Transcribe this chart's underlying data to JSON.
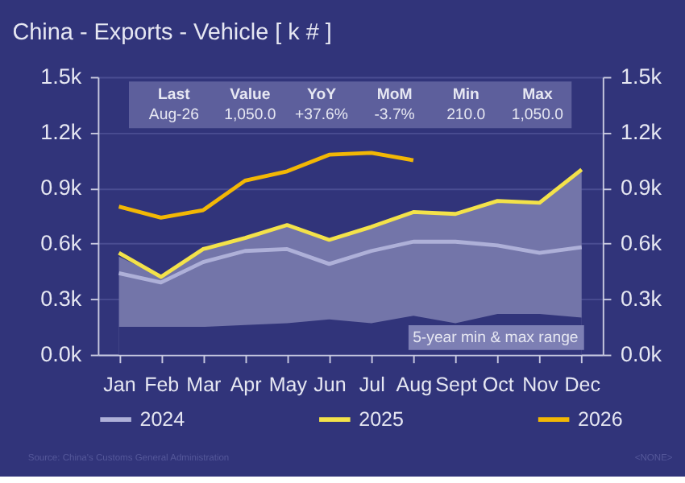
{
  "chart_data": {
    "type": "line",
    "title": "China - Exports - Vehicle [ k # ]",
    "categories": [
      "Jan",
      "Feb",
      "Mar",
      "Apr",
      "May",
      "Jun",
      "Jul",
      "Aug",
      "Sept",
      "Oct",
      "Nov",
      "Dec"
    ],
    "series": [
      {
        "name": "5-year min & max range",
        "type": "area",
        "color": "#7375a9",
        "values": [
          0.53,
          0.42,
          0.57,
          0.63,
          0.7,
          0.62,
          0.69,
          0.77,
          0.76,
          0.83,
          0.82,
          1.0
        ]
      },
      {
        "type": "area",
        "color": "#31347a",
        "values": [
          0.15,
          0.15,
          0.15,
          0.16,
          0.17,
          0.19,
          0.17,
          0.21,
          0.17,
          0.22,
          0.22,
          0.2
        ]
      },
      {
        "name": "2024",
        "color": "#aeb0d8",
        "values": [
          0.44,
          0.39,
          0.5,
          0.56,
          0.57,
          0.49,
          0.56,
          0.61,
          0.61,
          0.59,
          0.55,
          0.58
        ]
      },
      {
        "name": "2025",
        "color": "#f3e24a",
        "values": [
          0.55,
          0.42,
          0.57,
          0.63,
          0.7,
          0.62,
          0.69,
          0.77,
          0.76,
          0.83,
          0.82,
          1.0
        ]
      },
      {
        "name": "2026",
        "color": "#f2b705",
        "values": [
          0.8,
          0.74,
          0.78,
          0.94,
          0.99,
          1.08,
          1.09,
          1.05,
          null,
          null,
          null,
          null
        ]
      }
    ],
    "ylim": [
      0,
      1.5
    ],
    "yticks": [
      {
        "value": 0,
        "label": "0.0k"
      },
      {
        "value": 0.3,
        "label": "0.3k"
      },
      {
        "value": 0.6,
        "label": "0.6k"
      },
      {
        "value": 0.9,
        "label": "0.9k"
      },
      {
        "value": 1.2,
        "label": "1.2k"
      },
      {
        "value": 1.5,
        "label": "1.5k"
      }
    ],
    "y2lim": [
      0,
      1.5
    ],
    "y2ticks": [
      {
        "value": 0,
        "label": "0.0k"
      },
      {
        "value": 0.3,
        "label": "0.3k"
      },
      {
        "value": 0.6,
        "label": "0.6k"
      },
      {
        "value": 0.9,
        "label": "0.9k"
      },
      {
        "value": 1.2,
        "label": "1.2k"
      },
      {
        "value": 1.5,
        "label": "1.5k"
      }
    ],
    "grid": "y",
    "legend": "bottom",
    "annotations": [
      "Last",
      "Value",
      "YoY",
      "MoM",
      "Min",
      "Max",
      "Aug-26",
      "1,050.0",
      "+37.6%",
      "-3.7%",
      "210.0",
      "1,050.0",
      "Source: China's Customs General Administration",
      "<NONE>"
    ]
  }
}
